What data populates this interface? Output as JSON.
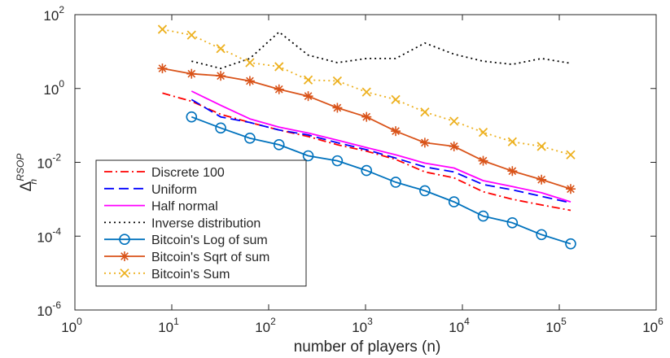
{
  "chart_data": {
    "type": "line",
    "title": "",
    "xlabel": "number of players (n)",
    "ylabel_base": "Δ",
    "ylabel_sub": "n",
    "ylabel_sup": "RSOP",
    "xscale": "log",
    "yscale": "log",
    "xlim": [
      1,
      1000000
    ],
    "ylim": [
      1e-06,
      100
    ],
    "grid": false,
    "legend_position": "bottom-left",
    "x_ticks": [
      {
        "value": 1,
        "base": "10",
        "exp": "0"
      },
      {
        "value": 10,
        "base": "10",
        "exp": "1"
      },
      {
        "value": 100,
        "base": "10",
        "exp": "2"
      },
      {
        "value": 1000,
        "base": "10",
        "exp": "3"
      },
      {
        "value": 10000,
        "base": "10",
        "exp": "4"
      },
      {
        "value": 100000,
        "base": "10",
        "exp": "5"
      },
      {
        "value": 1000000,
        "base": "10",
        "exp": "6"
      }
    ],
    "y_ticks": [
      {
        "value": 1e-06,
        "base": "10",
        "exp": "-6"
      },
      {
        "value": 0.0001,
        "base": "10",
        "exp": "-4"
      },
      {
        "value": 0.01,
        "base": "10",
        "exp": "-2"
      },
      {
        "value": 1,
        "base": "10",
        "exp": "0"
      },
      {
        "value": 100,
        "base": "10",
        "exp": "2"
      }
    ],
    "series": [
      {
        "name": "Discrete 100",
        "color": "#ff0000",
        "dash": "dashdot",
        "marker": "none",
        "x": [
          8,
          16,
          32,
          64,
          128,
          256,
          512,
          1024,
          2048,
          4096,
          8192,
          16384,
          32768,
          65536,
          131072
        ],
        "y": [
          0.75,
          0.45,
          0.2,
          0.12,
          0.075,
          0.05,
          0.03,
          0.02,
          0.012,
          0.0055,
          0.0038,
          0.0016,
          0.001,
          0.0007,
          0.0005
        ]
      },
      {
        "name": "Uniform",
        "color": "#0000ff",
        "dash": "dash",
        "marker": "none",
        "x": [
          16,
          32,
          64,
          128,
          256,
          512,
          1024,
          2048,
          4096,
          8192,
          16384,
          32768,
          65536,
          131072
        ],
        "y": [
          0.5,
          0.17,
          0.12,
          0.075,
          0.055,
          0.034,
          0.022,
          0.013,
          0.0075,
          0.0055,
          0.0025,
          0.0018,
          0.0012,
          0.0008
        ]
      },
      {
        "name": "Half normal",
        "color": "#ff00ff",
        "dash": "solid",
        "marker": "none",
        "x": [
          16,
          32,
          64,
          128,
          256,
          512,
          1024,
          2048,
          4096,
          8192,
          16384,
          32768,
          65536,
          131072
        ],
        "y": [
          0.85,
          0.35,
          0.15,
          0.09,
          0.062,
          0.04,
          0.025,
          0.016,
          0.0095,
          0.007,
          0.0032,
          0.0022,
          0.0015,
          0.00085
        ]
      },
      {
        "name": "Inverse distribution",
        "color": "#000000",
        "dash": "dot",
        "marker": "none",
        "x": [
          16,
          32,
          64,
          128,
          256,
          512,
          1024,
          2048,
          4096,
          8192,
          16384,
          32768,
          65536,
          131072
        ],
        "y": [
          5.5,
          3.5,
          6.5,
          34,
          8,
          5,
          6.5,
          6.5,
          17,
          8.5,
          5.5,
          4.5,
          6.5,
          4.8
        ]
      },
      {
        "name": "Bitcoin's Log of sum",
        "color": "#0072bd",
        "dash": "solid",
        "marker": "circle",
        "x": [
          16,
          32,
          64,
          128,
          256,
          512,
          1024,
          2048,
          4096,
          8192,
          16384,
          32768,
          65536,
          131072
        ],
        "y": [
          0.17,
          0.085,
          0.045,
          0.03,
          0.015,
          0.011,
          0.006,
          0.0029,
          0.0017,
          0.00085,
          0.00035,
          0.00023,
          0.00011,
          6.2e-05
        ]
      },
      {
        "name": "Bitcoin's Sqrt of sum",
        "color": "#d95319",
        "dash": "solid",
        "marker": "asterisk",
        "x": [
          8,
          16,
          32,
          64,
          128,
          256,
          512,
          1024,
          2048,
          4096,
          8192,
          16384,
          32768,
          65536,
          131072
        ],
        "y": [
          3.5,
          2.5,
          2.2,
          1.6,
          0.95,
          0.62,
          0.3,
          0.17,
          0.07,
          0.034,
          0.027,
          0.011,
          0.0058,
          0.0034,
          0.0019
        ]
      },
      {
        "name": "Bitcoin's Sum",
        "color": "#edb120",
        "dash": "dot",
        "marker": "x",
        "x": [
          8,
          16,
          32,
          64,
          128,
          256,
          512,
          1024,
          2048,
          4096,
          8192,
          16384,
          32768,
          65536,
          131072
        ],
        "y": [
          40,
          28,
          12,
          5,
          3.9,
          1.7,
          1.6,
          0.8,
          0.5,
          0.23,
          0.13,
          0.065,
          0.036,
          0.027,
          0.016
        ]
      }
    ]
  }
}
